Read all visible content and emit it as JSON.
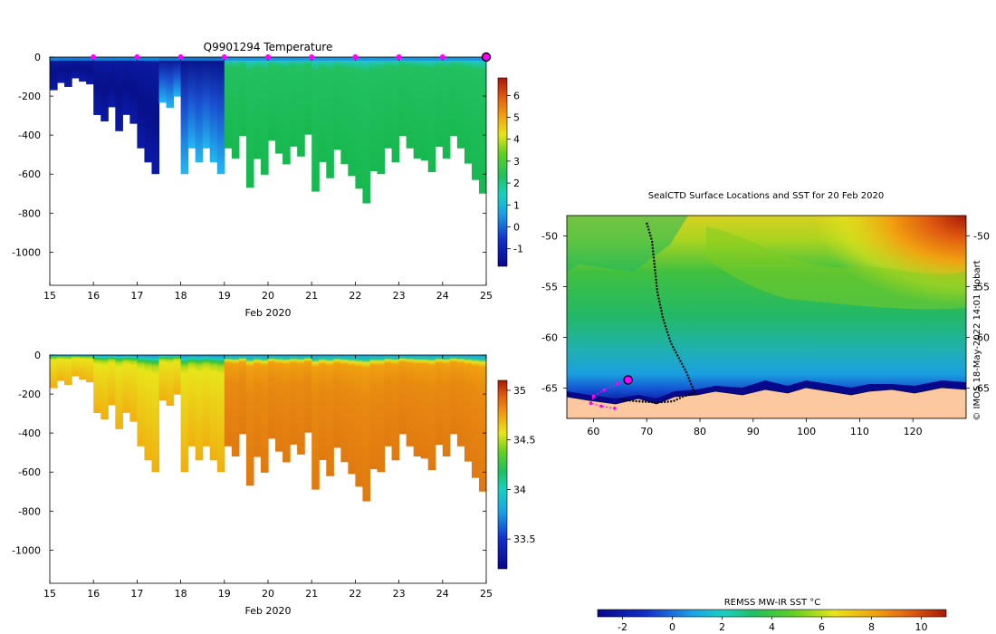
{
  "chart_data": [
    {
      "type": "heatmap",
      "title": "Q9901294  Temperature",
      "xlabel": "Feb 2020",
      "ylabel": "",
      "xlim": [
        15,
        25
      ],
      "ylim": [
        -1170,
        0
      ],
      "x_ticks": [
        "15",
        "16",
        "17",
        "18",
        "19",
        "20",
        "21",
        "22",
        "23",
        "24",
        "25"
      ],
      "y_ticks": [
        "0",
        "-200",
        "-400",
        "-600",
        "-800",
        "-1000"
      ],
      "colorbar": {
        "min": -1.8,
        "max": 6.8,
        "ticks": [
          "-1",
          "0",
          "1",
          "2",
          "3",
          "4",
          "5",
          "6"
        ]
      },
      "marker_days": [
        16,
        17,
        18,
        19,
        20,
        21,
        22,
        23,
        24
      ],
      "highlight_day": 25,
      "profile_depth_bins": [
        {
          "from": 15.0,
          "to": 15.5,
          "depth": -170
        },
        {
          "from": 15.5,
          "to": 16.0,
          "depth": -140
        },
        {
          "from": 16.0,
          "to": 16.5,
          "depth": -330
        },
        {
          "from": 16.5,
          "to": 17.0,
          "depth": -380
        },
        {
          "from": 17.0,
          "to": 17.5,
          "depth": -600
        },
        {
          "from": 17.5,
          "to": 18.0,
          "depth": -260
        },
        {
          "from": 18.0,
          "to": 18.5,
          "depth": -600
        },
        {
          "from": 18.5,
          "to": 19.0,
          "depth": -600
        },
        {
          "from": 19.0,
          "to": 19.5,
          "depth": -520
        },
        {
          "from": 19.5,
          "to": 20.0,
          "depth": -670
        },
        {
          "from": 20.0,
          "to": 20.5,
          "depth": -550
        },
        {
          "from": 20.5,
          "to": 21.0,
          "depth": -510
        },
        {
          "from": 21.0,
          "to": 21.5,
          "depth": -690
        },
        {
          "from": 21.5,
          "to": 22.0,
          "depth": -610
        },
        {
          "from": 22.0,
          "to": 22.5,
          "depth": -750
        },
        {
          "from": 22.5,
          "to": 23.0,
          "depth": -600
        },
        {
          "from": 23.0,
          "to": 23.5,
          "depth": -520
        },
        {
          "from": 23.5,
          "to": 24.0,
          "depth": -590
        },
        {
          "from": 24.0,
          "to": 24.5,
          "depth": -520
        },
        {
          "from": 24.5,
          "to": 25.0,
          "depth": -700
        }
      ]
    },
    {
      "type": "heatmap",
      "title": "",
      "xlabel": "Feb 2020",
      "ylabel": "",
      "xlim": [
        15,
        25
      ],
      "ylim": [
        -1170,
        0
      ],
      "x_ticks": [
        "15",
        "16",
        "17",
        "18",
        "19",
        "20",
        "21",
        "22",
        "23",
        "24",
        "25"
      ],
      "y_ticks": [
        "0",
        "-200",
        "-400",
        "-600",
        "-800",
        "-1000"
      ],
      "colorbar": {
        "min": 33.2,
        "max": 35.1,
        "ticks": [
          "33.5",
          "34",
          "34.5",
          "35"
        ]
      }
    },
    {
      "type": "heatmap",
      "title": "SealCTD Surface Locations and SST for 20 Feb 2020",
      "xlabel": "",
      "ylabel": "",
      "xlim": [
        55,
        130
      ],
      "ylim": [
        -68,
        -48
      ],
      "x_ticks": [
        "60",
        "70",
        "80",
        "90",
        "100",
        "110",
        "120"
      ],
      "y_ticks": [
        "-50",
        "-55",
        "-60",
        "-65"
      ],
      "colorbar": {
        "label": "REMSS MW-IR SST °C",
        "min": -3,
        "max": 11,
        "ticks": [
          "-2",
          "0",
          "2",
          "4",
          "6",
          "8",
          "10"
        ]
      },
      "credit": "© IMOS 18-May-2022 14:01 Hobart",
      "track_points": [
        [
          70,
          -48.7
        ],
        [
          71,
          -50.5
        ],
        [
          71.5,
          -53
        ],
        [
          72,
          -55.5
        ],
        [
          73,
          -58
        ],
        [
          74.5,
          -60.5
        ],
        [
          76,
          -62
        ],
        [
          77.5,
          -63.5
        ],
        [
          78.5,
          -64.8
        ],
        [
          79,
          -65.5
        ],
        [
          77,
          -65.8
        ],
        [
          75,
          -66.3
        ],
        [
          73,
          -66.4
        ],
        [
          71,
          -66.4
        ],
        [
          68,
          -66.3
        ],
        [
          65,
          -66.1
        ]
      ],
      "recent_points": [
        [
          66.5,
          -64.2
        ],
        [
          64.5,
          -64.6
        ],
        [
          62,
          -65.2
        ],
        [
          60,
          -65.8
        ],
        [
          59.5,
          -66.5
        ],
        [
          61.5,
          -66.8
        ],
        [
          64,
          -67.0
        ]
      ],
      "current_position": [
        66.5,
        -64.2
      ]
    }
  ]
}
